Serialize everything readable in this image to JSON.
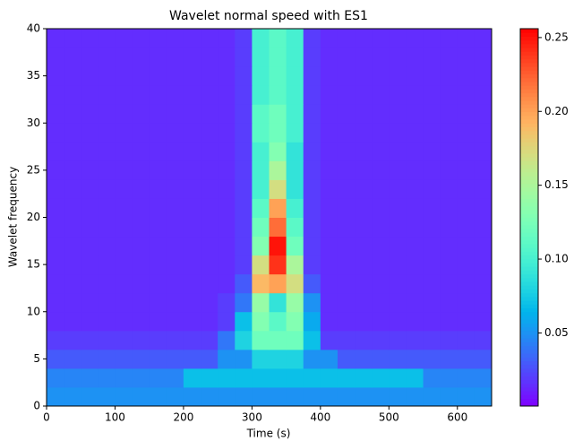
{
  "chart_data": {
    "type": "heatmap",
    "title": "Wavelet normal speed with ES1",
    "x_label": "Time (s)",
    "y_label": "Wavelet frequency",
    "colormap": "rainbow",
    "x": [
      0,
      25,
      50,
      75,
      100,
      125,
      150,
      175,
      200,
      225,
      250,
      275,
      300,
      325,
      350,
      375,
      400,
      425,
      450,
      475,
      500,
      525,
      550,
      575,
      600,
      625,
      650
    ],
    "y": [
      0,
      2,
      4,
      6,
      8,
      10,
      12,
      14,
      16,
      18,
      20,
      22,
      24,
      26,
      28,
      30,
      32,
      34,
      36,
      38,
      40
    ],
    "z": [
      [
        0.05,
        0.05,
        0.05,
        0.05,
        0.05,
        0.05,
        0.05,
        0.05,
        0.05,
        0.05,
        0.05,
        0.05,
        0.05,
        0.05,
        0.05,
        0.05,
        0.05,
        0.05,
        0.05,
        0.05,
        0.05,
        0.05,
        0.05,
        0.05,
        0.05,
        0.05
      ],
      [
        0.045,
        0.045,
        0.045,
        0.045,
        0.045,
        0.045,
        0.045,
        0.045,
        0.07,
        0.07,
        0.07,
        0.07,
        0.07,
        0.07,
        0.07,
        0.07,
        0.07,
        0.07,
        0.07,
        0.07,
        0.07,
        0.07,
        0.045,
        0.045,
        0.045,
        0.045
      ],
      [
        0.03,
        0.03,
        0.03,
        0.03,
        0.03,
        0.03,
        0.03,
        0.03,
        0.03,
        0.03,
        0.05,
        0.05,
        0.08,
        0.08,
        0.08,
        0.05,
        0.05,
        0.03,
        0.03,
        0.03,
        0.03,
        0.03,
        0.03,
        0.03,
        0.03,
        0.03
      ],
      [
        0.02,
        0.02,
        0.02,
        0.02,
        0.02,
        0.02,
        0.02,
        0.02,
        0.02,
        0.02,
        0.04,
        0.08,
        0.12,
        0.12,
        0.12,
        0.07,
        0.02,
        0.02,
        0.02,
        0.02,
        0.02,
        0.02,
        0.02,
        0.02,
        0.02,
        0.02
      ],
      [
        0.015,
        0.015,
        0.015,
        0.015,
        0.015,
        0.015,
        0.015,
        0.015,
        0.015,
        0.015,
        0.02,
        0.07,
        0.13,
        0.11,
        0.13,
        0.06,
        0.015,
        0.015,
        0.015,
        0.015,
        0.015,
        0.015,
        0.015,
        0.015,
        0.015,
        0.015
      ],
      [
        0.015,
        0.015,
        0.015,
        0.015,
        0.015,
        0.015,
        0.015,
        0.015,
        0.015,
        0.015,
        0.02,
        0.04,
        0.14,
        0.09,
        0.14,
        0.05,
        0.015,
        0.015,
        0.015,
        0.015,
        0.015,
        0.015,
        0.015,
        0.015,
        0.015,
        0.015
      ],
      [
        0.015,
        0.015,
        0.015,
        0.015,
        0.015,
        0.015,
        0.015,
        0.015,
        0.015,
        0.015,
        0.015,
        0.03,
        0.19,
        0.2,
        0.17,
        0.03,
        0.015,
        0.015,
        0.015,
        0.015,
        0.015,
        0.015,
        0.015,
        0.015,
        0.015,
        0.015
      ],
      [
        0.015,
        0.015,
        0.015,
        0.015,
        0.015,
        0.015,
        0.015,
        0.015,
        0.015,
        0.015,
        0.015,
        0.02,
        0.17,
        0.24,
        0.15,
        0.02,
        0.015,
        0.015,
        0.015,
        0.015,
        0.015,
        0.015,
        0.015,
        0.015,
        0.015,
        0.015
      ],
      [
        0.015,
        0.015,
        0.015,
        0.015,
        0.015,
        0.015,
        0.015,
        0.015,
        0.015,
        0.015,
        0.015,
        0.02,
        0.13,
        0.25,
        0.12,
        0.02,
        0.015,
        0.015,
        0.015,
        0.015,
        0.015,
        0.015,
        0.015,
        0.015,
        0.015,
        0.015
      ],
      [
        0.015,
        0.015,
        0.015,
        0.015,
        0.015,
        0.015,
        0.015,
        0.015,
        0.015,
        0.015,
        0.015,
        0.02,
        0.12,
        0.22,
        0.11,
        0.02,
        0.015,
        0.015,
        0.015,
        0.015,
        0.015,
        0.015,
        0.015,
        0.015,
        0.015,
        0.015
      ],
      [
        0.015,
        0.015,
        0.015,
        0.015,
        0.015,
        0.015,
        0.015,
        0.015,
        0.015,
        0.015,
        0.015,
        0.02,
        0.11,
        0.2,
        0.1,
        0.02,
        0.015,
        0.015,
        0.015,
        0.015,
        0.015,
        0.015,
        0.015,
        0.015,
        0.015,
        0.015
      ],
      [
        0.015,
        0.015,
        0.015,
        0.015,
        0.015,
        0.015,
        0.015,
        0.015,
        0.015,
        0.015,
        0.015,
        0.02,
        0.1,
        0.17,
        0.09,
        0.02,
        0.015,
        0.015,
        0.015,
        0.015,
        0.015,
        0.015,
        0.015,
        0.015,
        0.015,
        0.015
      ],
      [
        0.015,
        0.015,
        0.015,
        0.015,
        0.015,
        0.015,
        0.015,
        0.015,
        0.015,
        0.015,
        0.015,
        0.02,
        0.1,
        0.15,
        0.09,
        0.02,
        0.015,
        0.015,
        0.015,
        0.015,
        0.015,
        0.015,
        0.015,
        0.015,
        0.015,
        0.015
      ],
      [
        0.015,
        0.015,
        0.015,
        0.015,
        0.015,
        0.015,
        0.015,
        0.015,
        0.015,
        0.015,
        0.015,
        0.02,
        0.1,
        0.13,
        0.09,
        0.02,
        0.015,
        0.015,
        0.015,
        0.015,
        0.015,
        0.015,
        0.015,
        0.015,
        0.015,
        0.015
      ],
      [
        0.015,
        0.015,
        0.015,
        0.015,
        0.015,
        0.015,
        0.015,
        0.015,
        0.015,
        0.015,
        0.015,
        0.02,
        0.11,
        0.12,
        0.1,
        0.02,
        0.015,
        0.015,
        0.015,
        0.015,
        0.015,
        0.015,
        0.015,
        0.015,
        0.015,
        0.015
      ],
      [
        0.015,
        0.015,
        0.015,
        0.015,
        0.015,
        0.015,
        0.015,
        0.015,
        0.015,
        0.015,
        0.015,
        0.02,
        0.11,
        0.12,
        0.1,
        0.02,
        0.015,
        0.015,
        0.015,
        0.015,
        0.015,
        0.015,
        0.015,
        0.015,
        0.015,
        0.015
      ],
      [
        0.015,
        0.015,
        0.015,
        0.015,
        0.015,
        0.015,
        0.015,
        0.015,
        0.015,
        0.015,
        0.015,
        0.02,
        0.1,
        0.11,
        0.1,
        0.02,
        0.015,
        0.015,
        0.015,
        0.015,
        0.015,
        0.015,
        0.015,
        0.015,
        0.015,
        0.015
      ],
      [
        0.015,
        0.015,
        0.015,
        0.015,
        0.015,
        0.015,
        0.015,
        0.015,
        0.015,
        0.015,
        0.015,
        0.02,
        0.1,
        0.11,
        0.1,
        0.02,
        0.015,
        0.015,
        0.015,
        0.015,
        0.015,
        0.015,
        0.015,
        0.015,
        0.015,
        0.015
      ],
      [
        0.015,
        0.015,
        0.015,
        0.015,
        0.015,
        0.015,
        0.015,
        0.015,
        0.015,
        0.015,
        0.015,
        0.02,
        0.1,
        0.11,
        0.1,
        0.02,
        0.015,
        0.015,
        0.015,
        0.015,
        0.015,
        0.015,
        0.015,
        0.015,
        0.015,
        0.015
      ],
      [
        0.015,
        0.015,
        0.015,
        0.015,
        0.015,
        0.015,
        0.015,
        0.015,
        0.015,
        0.015,
        0.015,
        0.02,
        0.1,
        0.11,
        0.1,
        0.02,
        0.015,
        0.015,
        0.015,
        0.015,
        0.015,
        0.015,
        0.015,
        0.015,
        0.015,
        0.015
      ]
    ],
    "xlim": [
      0,
      650
    ],
    "xticks": [
      0,
      100,
      200,
      300,
      400,
      500,
      600
    ],
    "ylim": [
      0,
      40
    ],
    "yticks": [
      0,
      5,
      10,
      15,
      20,
      25,
      30,
      35,
      40
    ],
    "zlim": [
      0.0005,
      0.256
    ],
    "zticks": [
      0.05,
      0.1,
      0.15,
      0.2,
      0.25
    ]
  }
}
